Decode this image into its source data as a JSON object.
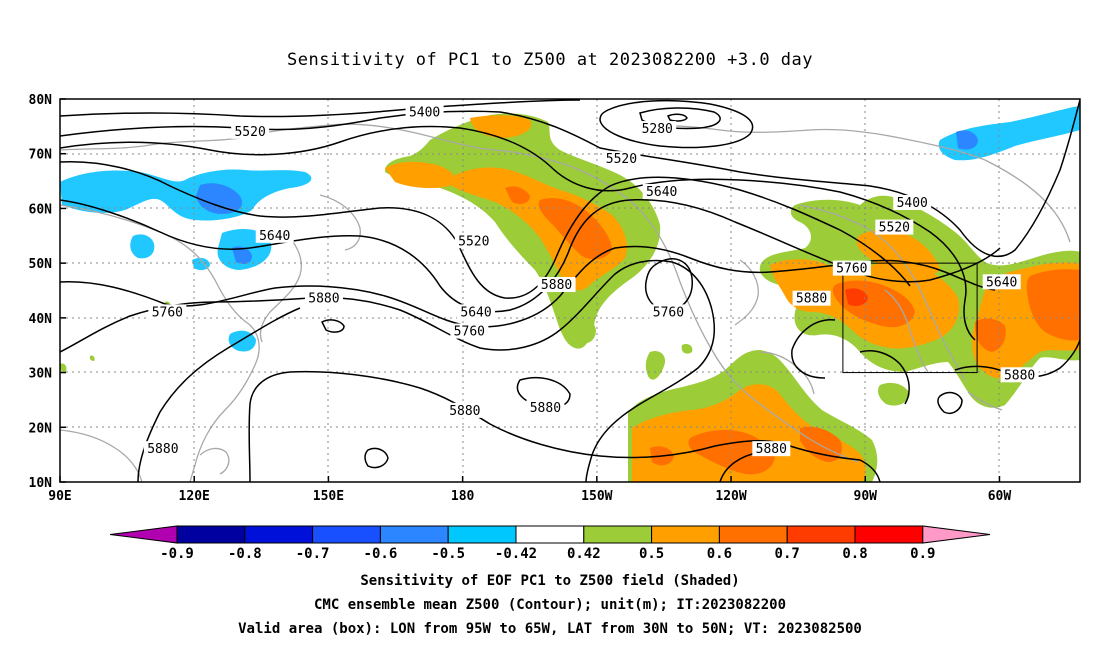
{
  "title": "Sensitivity of PC1 to Z500 at 2023082200 +3.0 day",
  "map": {
    "lat_labels": [
      "80N",
      "70N",
      "60N",
      "50N",
      "40N",
      "30N",
      "20N",
      "10N"
    ],
    "lon_labels": [
      "90E",
      "120E",
      "150E",
      "180",
      "150W",
      "120W",
      "90W",
      "60W"
    ],
    "extent": {
      "lon_min": 90,
      "lon_max": 318,
      "lat_min": 10,
      "lat_max": 80
    },
    "contour_labels": [
      {
        "text": "5400",
        "lon": 171.5,
        "lat": 77.5
      },
      {
        "text": "5280",
        "lon": 223.5,
        "lat": 74.5
      },
      {
        "text": "5520",
        "lon": 132.5,
        "lat": 74.0
      },
      {
        "text": "5520",
        "lon": 215.5,
        "lat": 69.0
      },
      {
        "text": "5640",
        "lon": 224.5,
        "lat": 63.0
      },
      {
        "text": "5400",
        "lon": 280.5,
        "lat": 61.0
      },
      {
        "text": "5520",
        "lon": 276.5,
        "lat": 56.5
      },
      {
        "text": "5520",
        "lon": 182.5,
        "lat": 54.0
      },
      {
        "text": "5640",
        "lon": 138.0,
        "lat": 55.0
      },
      {
        "text": "5760",
        "lon": 267.0,
        "lat": 49.0
      },
      {
        "text": "5640",
        "lon": 300.5,
        "lat": 46.5
      },
      {
        "text": "5880",
        "lon": 201.0,
        "lat": 46.0
      },
      {
        "text": "5880",
        "lon": 149.0,
        "lat": 43.5
      },
      {
        "text": "5880",
        "lon": 258.0,
        "lat": 43.5
      },
      {
        "text": "5760",
        "lon": 114.0,
        "lat": 41.0
      },
      {
        "text": "5640",
        "lon": 183.0,
        "lat": 41.0
      },
      {
        "text": "5760",
        "lon": 181.5,
        "lat": 37.5
      },
      {
        "text": "5760",
        "lon": 226.0,
        "lat": 41.0
      },
      {
        "text": "5880",
        "lon": 304.5,
        "lat": 29.5
      },
      {
        "text": "5880",
        "lon": 180.5,
        "lat": 23.0
      },
      {
        "text": "5880",
        "lon": 198.5,
        "lat": 23.5
      },
      {
        "text": "5880",
        "lon": 249.0,
        "lat": 16.0
      },
      {
        "text": "5880",
        "lon": 113.0,
        "lat": 16.0
      }
    ],
    "valid_box": {
      "lon_w": 265,
      "lon_e": 295,
      "lat_s": 30,
      "lat_n": 50
    }
  },
  "colorbar": {
    "labels": [
      "-0.9",
      "-0.8",
      "-0.7",
      "-0.6",
      "-0.5",
      "-0.42",
      "0.42",
      "0.5",
      "0.6",
      "0.7",
      "0.8",
      "0.9"
    ],
    "colors": [
      "#b000b0",
      "#0000a0",
      "#0010d8",
      "#1850ff",
      "#2c86ff",
      "#00c8ff",
      "#ffffff",
      "#9ccc38",
      "#ffa000",
      "#ff7000",
      "#ff3c00",
      "#ff0000",
      "#ff99c8"
    ]
  },
  "captions": {
    "line1": "Sensitivity of EOF PC1 to Z500 field (Shaded)",
    "line2": "CMC ensemble mean Z500 (Contour); unit(m); IT:2023082200",
    "line3": "Valid area (box): LON from 95W to 65W, LAT from 30N to 50N; VT: 2023082500"
  }
}
